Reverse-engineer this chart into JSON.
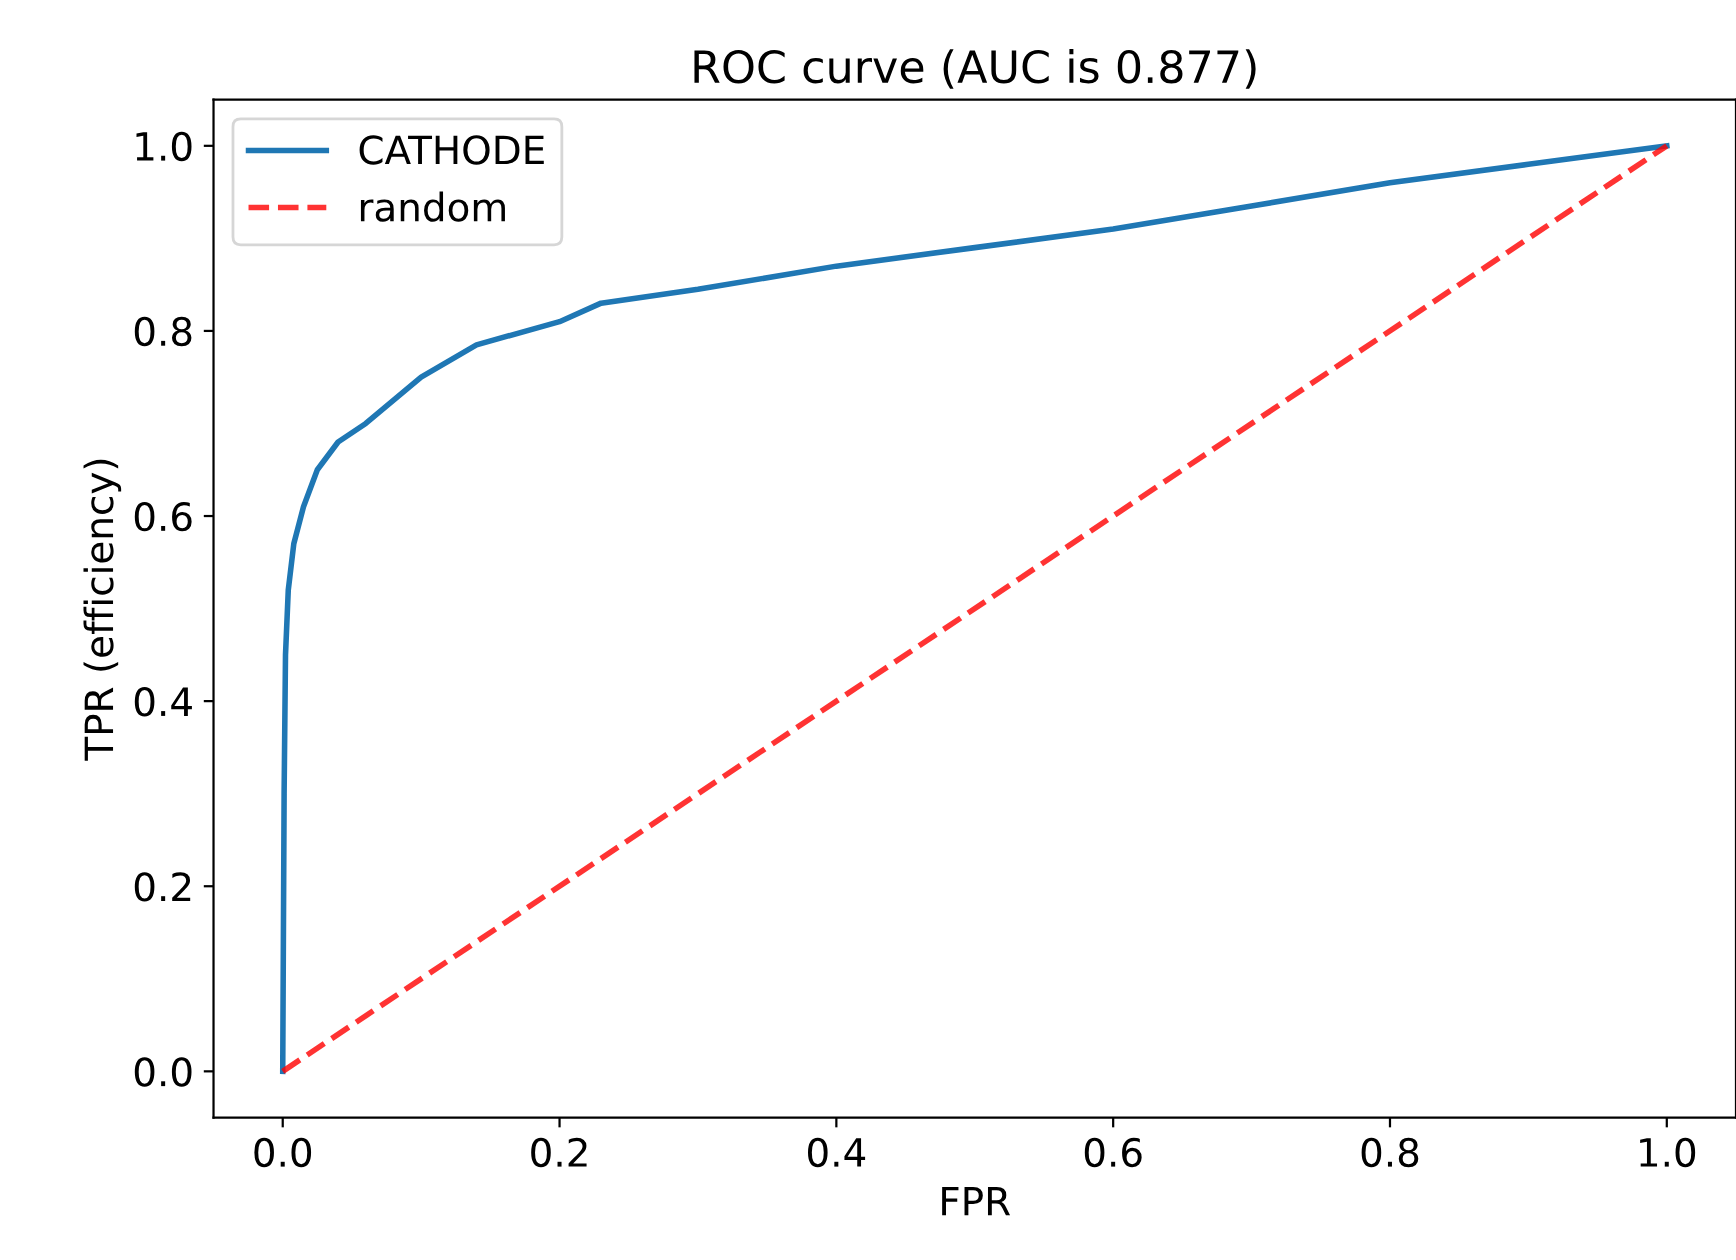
{
  "chart_data": {
    "type": "line",
    "title": "ROC curve (AUC is 0.877)",
    "xlabel": "FPR",
    "ylabel": "TPR (efficiency)",
    "series": [
      {
        "name": "CATHODE",
        "color": "#1f77b4",
        "line_style": "solid",
        "x": [
          0,
          0.001,
          0.002,
          0.004,
          0.008,
          0.015,
          0.025,
          0.04,
          0.06,
          0.1,
          0.14,
          0.2,
          0.23,
          0.3,
          0.4,
          0.5,
          0.6,
          0.7,
          0.8,
          0.9,
          1.0
        ],
        "values": [
          0,
          0.3,
          0.45,
          0.52,
          0.57,
          0.61,
          0.65,
          0.68,
          0.7,
          0.75,
          0.785,
          0.81,
          0.83,
          0.845,
          0.87,
          0.89,
          0.91,
          0.935,
          0.96,
          0.98,
          1.0
        ]
      },
      {
        "name": "random",
        "color": "#ff0000",
        "line_style": "dashed",
        "x": [
          0,
          1
        ],
        "values": [
          0,
          1
        ]
      }
    ],
    "xlim": [
      -0.05,
      1.05
    ],
    "ylim": [
      -0.05,
      1.05
    ],
    "xticks": [
      {
        "value": 0,
        "label": "0.0"
      },
      0.2,
      0.4,
      0.6,
      0.8,
      {
        "value": 1,
        "label": "1.0"
      }
    ],
    "yticks": [
      {
        "value": 0,
        "label": "0.0"
      },
      0.2,
      0.4,
      0.6,
      0.8,
      {
        "value": 1,
        "label": "1.0"
      }
    ],
    "legend": "top left",
    "grid": false
  }
}
